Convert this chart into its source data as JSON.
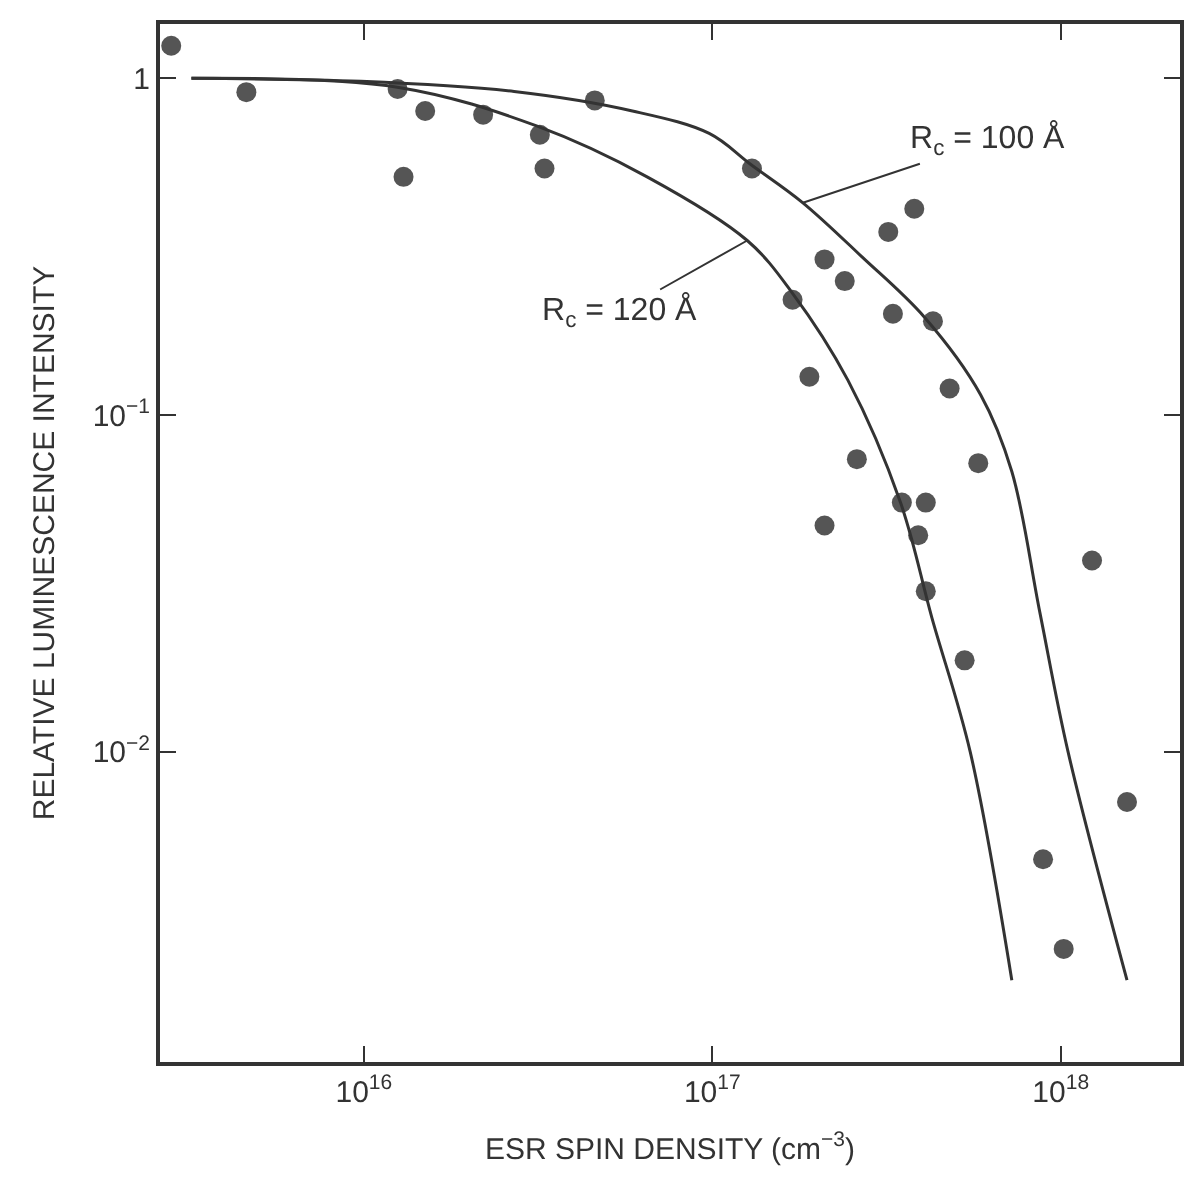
{
  "chart_data": {
    "type": "scatter",
    "xlabel": "ESR SPIN DENSITY (cm$^{−3}$)",
    "ylabel": "RELATIVE LUMINESCENCE INTENSITY",
    "log": "xy",
    "xlim": [
      2600000000000000.0,
      2.2e+18
    ],
    "ylim": [
      0.0012,
      1.45
    ],
    "xticks": [
      {
        "value": 1e+16,
        "label": "10$^{16}$"
      },
      {
        "value": 1e+17,
        "label": "10$^{17}$"
      },
      {
        "value": 1e+18,
        "label": "10$^{18}$"
      }
    ],
    "yticks": [
      {
        "value": 1,
        "label": "1"
      },
      {
        "value": 0.1,
        "label": "10$^{−1}$"
      },
      {
        "value": 0.01,
        "label": "10$^{−2}$"
      }
    ],
    "series": [
      {
        "type": "scatter",
        "marker": "circle",
        "color": "#555555",
        "x": [
          2800000000000000.0,
          4600000000000000.0,
          1.25e+16,
          1.3e+16,
          1.5e+16,
          2.2e+16,
          3.2e+16,
          3.3e+16,
          4.6e+16,
          1.3e+17,
          1.7e+17,
          1.9e+17,
          2.1e+17,
          2.1e+17,
          2.4e+17,
          2.6e+17,
          3.2e+17,
          3.3e+17,
          3.8e+17,
          3.5e+17,
          4.1e+17,
          3.9e+17,
          4.3e+17,
          4.8e+17,
          4.1e+17,
          5.8e+17,
          1.23e+18,
          5.3e+17,
          1.55e+18,
          8.9e+17,
          1.02e+18
        ],
        "values": [
          1.25,
          0.91,
          0.93,
          0.51,
          0.8,
          0.78,
          0.68,
          0.54,
          0.86,
          0.54,
          0.22,
          0.13,
          0.29,
          0.047,
          0.25,
          0.074,
          0.35,
          0.2,
          0.41,
          0.055,
          0.055,
          0.044,
          0.19,
          0.12,
          0.03,
          0.072,
          0.037,
          0.0187,
          0.0071,
          0.0048,
          0.0026
        ]
      },
      {
        "type": "line",
        "marker": "none",
        "line_style": "solid",
        "color": "#333333",
        "x": [
          3200000000000000.0,
          9800000000000000.0,
          2.7e+16,
          5.9e+16,
          9.8e+16,
          1.29e+17,
          1.82e+17,
          2.69e+17,
          4.07e+17,
          5.89e+17,
          7.24e+17,
          8.71e+17,
          1.05e+18,
          1.55e+18
        ],
        "values": [
          1,
          0.98,
          0.914,
          0.8,
          0.686,
          0.555,
          0.427,
          0.295,
          0.195,
          0.115,
          0.068,
          0.026,
          0.01,
          0.0021
        ]
      },
      {
        "type": "line",
        "marker": "none",
        "line_style": "solid",
        "color": "#333333",
        "x": [
          3200000000000000.0,
          1.26e+16,
          3.16e+16,
          6.5e+16,
          1.26e+17,
          1.7e+17,
          2.45e+17,
          3.47e+17,
          4.27e+17,
          5.5e+17,
          7.24e+17
        ],
        "values": [
          1,
          0.94,
          0.72,
          0.51,
          0.33,
          0.23,
          0.127,
          0.055,
          0.025,
          0.01,
          0.0021
        ]
      }
    ],
    "annotations": [
      {
        "text": "R$_{c}$ = 100 Å",
        "x": 1.82e+17,
        "y": 0.427
      },
      {
        "text": "R$_{c}$ = 120 Å",
        "x": 1.26e+17,
        "y": 0.33
      }
    ]
  }
}
